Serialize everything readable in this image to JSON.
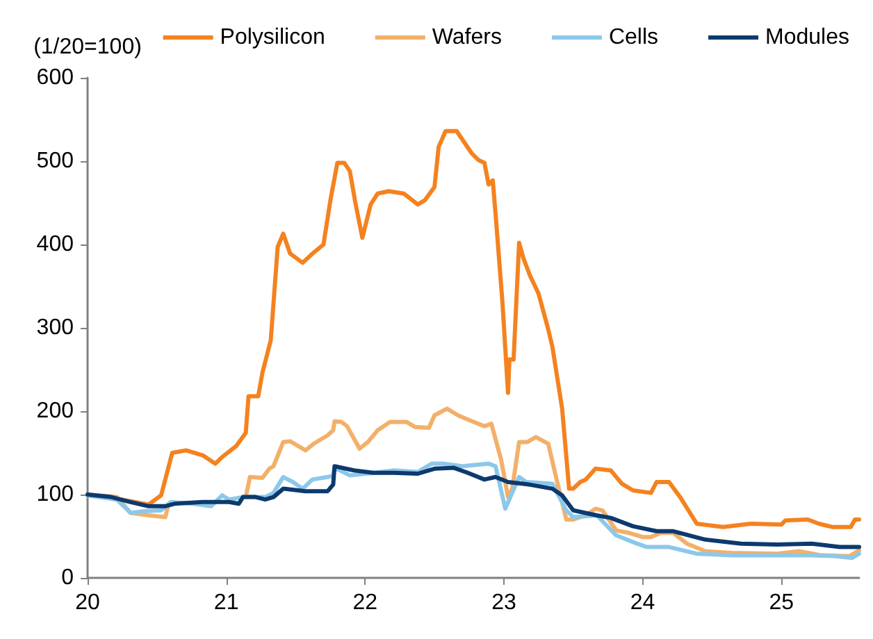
{
  "chart_data": {
    "type": "line",
    "ylabel": "(1/20=100)",
    "xlim": [
      20,
      25.56
    ],
    "xticks": [
      20,
      21,
      22,
      23,
      24,
      25
    ],
    "ylim": [
      0,
      600
    ],
    "yticks": [
      0,
      100,
      200,
      300,
      400,
      500,
      600
    ],
    "grid": false,
    "legend": "top",
    "marker": "none",
    "line_style": "solid",
    "series": [
      {
        "name": "Polysilicon",
        "color": "#f4821f",
        "x": [
          20,
          20.24,
          20.44,
          20.53,
          20.61,
          20.71,
          20.83,
          20.92,
          20.97,
          21.07,
          21.14,
          21.16,
          21.23,
          21.26,
          21.32,
          21.37,
          21.41,
          21.46,
          21.55,
          21.62,
          21.7,
          21.75,
          21.8,
          21.85,
          21.89,
          21.93,
          21.98,
          22.04,
          22.09,
          22.17,
          22.28,
          22.38,
          22.43,
          22.5,
          22.53,
          22.58,
          22.66,
          22.77,
          22.82,
          22.86,
          22.89,
          22.92,
          22.94,
          22.99,
          23.03,
          23.04,
          23.07,
          23.11,
          23.14,
          23.19,
          23.25,
          23.32,
          23.35,
          23.42,
          23.47,
          23.5,
          23.55,
          23.59,
          23.66,
          23.77,
          23.85,
          23.93,
          24.06,
          24.1,
          24.19,
          24.27,
          24.39,
          24.58,
          24.78,
          25,
          25.03,
          25.19,
          25.27,
          25.37,
          25.5,
          25.53,
          25.56
        ],
        "values": [
          100,
          94,
          88,
          99,
          150,
          153,
          147,
          137,
          145,
          158,
          174,
          218,
          218,
          246,
          285,
          397,
          413,
          389,
          378,
          389,
          400,
          453,
          498,
          498,
          488,
          450,
          408,
          448,
          461,
          464,
          461,
          448,
          453,
          469,
          517,
          536,
          536,
          509,
          501,
          498,
          472,
          477,
          437,
          330,
          222,
          262,
          262,
          402,
          384,
          362,
          341,
          298,
          277,
          203,
          107,
          107,
          115,
          118,
          131,
          129,
          113,
          105,
          102,
          115,
          115,
          97,
          65,
          61,
          65,
          64,
          69,
          70,
          65,
          61,
          61,
          70,
          70
        ]
      },
      {
        "name": "Wafers",
        "color": "#f2b06a",
        "x": [
          20,
          20.21,
          20.31,
          20.44,
          20.56,
          20.58,
          20.99,
          21.14,
          21.17,
          21.26,
          21.31,
          21.34,
          21.41,
          21.46,
          21.57,
          21.63,
          21.73,
          21.77,
          21.78,
          21.83,
          21.87,
          21.96,
          22.02,
          22.09,
          22.18,
          22.3,
          22.36,
          22.46,
          22.5,
          22.59,
          22.67,
          22.74,
          22.86,
          22.91,
          22.98,
          23.03,
          23.06,
          23.11,
          23.17,
          23.23,
          23.32,
          23.38,
          23.45,
          23.5,
          23.59,
          23.66,
          23.71,
          23.81,
          23.9,
          24,
          24.06,
          24.13,
          24.22,
          24.32,
          24.45,
          24.64,
          24.97,
          25.13,
          25.29,
          25.49,
          25.56
        ],
        "values": [
          100,
          97,
          78,
          75,
          73,
          86,
          null,
          97,
          121,
          120,
          131,
          134,
          163,
          164,
          153,
          161,
          171,
          177,
          188,
          187,
          182,
          155,
          163,
          177,
          187,
          187,
          181,
          180,
          195,
          203,
          195,
          190,
          182,
          185,
          142,
          97,
          107,
          163,
          163,
          169,
          161,
          118,
          70,
          70,
          75,
          83,
          81,
          57,
          54,
          49,
          49,
          54,
          54,
          41,
          32,
          30,
          29,
          32,
          27,
          26,
          33
        ]
      },
      {
        "name": "Cells",
        "color": "#8cc8ea",
        "x": [
          20,
          20.21,
          20.31,
          20.41,
          20.53,
          20.6,
          20.76,
          20.89,
          20.97,
          21.02,
          21.12,
          21.28,
          21.34,
          21.41,
          21.48,
          21.55,
          21.62,
          21.73,
          21.77,
          21.78,
          21.89,
          22.06,
          22.21,
          22.38,
          22.48,
          22.57,
          22.7,
          22.89,
          22.94,
          23.01,
          23.06,
          23.11,
          23.16,
          23.35,
          23.45,
          23.5,
          23.67,
          23.81,
          23.93,
          24.03,
          24.19,
          24.39,
          24.64,
          24.97,
          25.22,
          25.39,
          25.51,
          25.56
        ],
        "values": [
          99,
          94,
          78,
          80,
          81,
          91,
          89,
          86,
          99,
          94,
          97,
          97,
          102,
          121,
          115,
          107,
          118,
          121,
          123,
          132,
          123,
          126,
          129,
          127,
          137,
          137,
          134,
          137,
          134,
          83,
          102,
          121,
          115,
          113,
          81,
          73,
          75,
          51,
          43,
          37,
          37,
          29,
          27,
          27,
          27,
          26,
          24,
          29
        ]
      },
      {
        "name": "Modules",
        "color": "#0c3a6e",
        "x": [
          20,
          20.17,
          20.31,
          20.44,
          20.56,
          20.63,
          20.83,
          21.02,
          21.09,
          21.12,
          21.21,
          21.28,
          21.34,
          21.41,
          21.57,
          21.73,
          21.77,
          21.78,
          21.92,
          22.06,
          22.21,
          22.38,
          22.5,
          22.64,
          22.74,
          22.86,
          22.94,
          23.03,
          23.18,
          23.35,
          23.42,
          23.5,
          23.67,
          23.77,
          23.93,
          24.1,
          24.22,
          24.45,
          24.71,
          24.97,
          25.22,
          25.42,
          25.56
        ],
        "values": [
          100,
          97,
          91,
          86,
          86,
          89,
          91,
          91,
          89,
          97,
          97,
          94,
          97,
          107,
          104,
          104,
          112,
          134,
          129,
          126,
          126,
          125,
          131,
          132,
          126,
          118,
          121,
          115,
          112,
          107,
          99,
          81,
          75,
          72,
          62,
          56,
          56,
          46,
          41,
          40,
          41,
          37,
          37
        ]
      }
    ]
  }
}
